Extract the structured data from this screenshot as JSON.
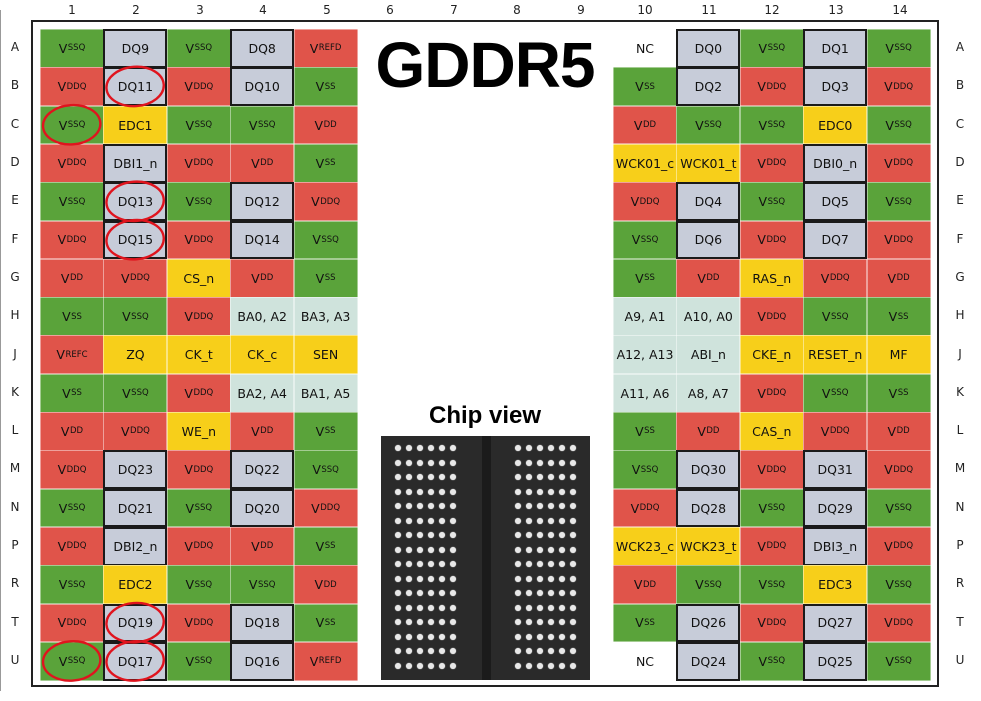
{
  "title": "GDDR5",
  "chip_view_label": "Chip view",
  "colors": {
    "vssq": "#5aa33a",
    "vss": "#5aa33a",
    "vddq": "#e0544a",
    "vdd": "#e0544a",
    "ref": "#e0544a",
    "dq": "#c7ccd9",
    "ctrl": "#f7cf1a",
    "addr": "#cfe3dc",
    "nc": "#ffffff",
    "circle": "#e0141e"
  },
  "columns": [
    "1",
    "2",
    "3",
    "4",
    "5",
    "6",
    "7",
    "8",
    "9",
    "10",
    "11",
    "12",
    "13",
    "14"
  ],
  "rows": [
    "A",
    "B",
    "C",
    "D",
    "E",
    "F",
    "G",
    "H",
    "J",
    "K",
    "L",
    "M",
    "N",
    "P",
    "R",
    "T",
    "U"
  ],
  "left_block": [
    [
      {
        "m": "V",
        "s": "SSQ",
        "t": "vssq"
      },
      {
        "m": "DQ9",
        "t": "dq",
        "b": 1
      },
      {
        "m": "V",
        "s": "SSQ",
        "t": "vssq"
      },
      {
        "m": "DQ8",
        "t": "dq",
        "b": 1
      },
      {
        "m": "V",
        "s": "REFD",
        "t": "ref"
      }
    ],
    [
      {
        "m": "V",
        "s": "DDQ",
        "t": "vddq"
      },
      {
        "m": "DQ11",
        "t": "dq",
        "b": 1
      },
      {
        "m": "V",
        "s": "DDQ",
        "t": "vddq"
      },
      {
        "m": "DQ10",
        "t": "dq",
        "b": 1
      },
      {
        "m": "V",
        "s": "SS",
        "t": "vss"
      }
    ],
    [
      {
        "m": "V",
        "s": "SSQ",
        "t": "vssq"
      },
      {
        "m": "EDC1",
        "t": "ctrl"
      },
      {
        "m": "V",
        "s": "SSQ",
        "t": "vssq"
      },
      {
        "m": "V",
        "s": "SSQ",
        "t": "vssq"
      },
      {
        "m": "V",
        "s": "DD",
        "t": "vdd"
      }
    ],
    [
      {
        "m": "V",
        "s": "DDQ",
        "t": "vddq"
      },
      {
        "m": "DBI1_n",
        "t": "dq",
        "b": 1
      },
      {
        "m": "V",
        "s": "DDQ",
        "t": "vddq"
      },
      {
        "m": "V",
        "s": "DD",
        "t": "vdd"
      },
      {
        "m": "V",
        "s": "SS",
        "t": "vss"
      }
    ],
    [
      {
        "m": "V",
        "s": "SSQ",
        "t": "vssq"
      },
      {
        "m": "DQ13",
        "t": "dq",
        "b": 1
      },
      {
        "m": "V",
        "s": "SSQ",
        "t": "vssq"
      },
      {
        "m": "DQ12",
        "t": "dq",
        "b": 1
      },
      {
        "m": "V",
        "s": "DDQ",
        "t": "vddq"
      }
    ],
    [
      {
        "m": "V",
        "s": "DDQ",
        "t": "vddq"
      },
      {
        "m": "DQ15",
        "t": "dq",
        "b": 1
      },
      {
        "m": "V",
        "s": "DDQ",
        "t": "vddq"
      },
      {
        "m": "DQ14",
        "t": "dq",
        "b": 1
      },
      {
        "m": "V",
        "s": "SSQ",
        "t": "vssq"
      }
    ],
    [
      {
        "m": "V",
        "s": "DD",
        "t": "vdd"
      },
      {
        "m": "V",
        "s": "DDQ",
        "t": "vddq"
      },
      {
        "m": "CS_n",
        "t": "ctrl"
      },
      {
        "m": "V",
        "s": "DD",
        "t": "vdd"
      },
      {
        "m": "V",
        "s": "SS",
        "t": "vss"
      }
    ],
    [
      {
        "m": "V",
        "s": "SS",
        "t": "vss"
      },
      {
        "m": "V",
        "s": "SSQ",
        "t": "vssq"
      },
      {
        "m": "V",
        "s": "DDQ",
        "t": "vddq"
      },
      {
        "m": "BA0, A2",
        "t": "addr"
      },
      {
        "m": "BA3, A3",
        "t": "addr"
      }
    ],
    [
      {
        "m": "V",
        "s": "REFC",
        "t": "ref"
      },
      {
        "m": "ZQ",
        "t": "ctrl"
      },
      {
        "m": "CK_t",
        "t": "ctrl"
      },
      {
        "m": "CK_c",
        "t": "ctrl"
      },
      {
        "m": "SEN",
        "t": "ctrl"
      }
    ],
    [
      {
        "m": "V",
        "s": "SS",
        "t": "vss"
      },
      {
        "m": "V",
        "s": "SSQ",
        "t": "vssq"
      },
      {
        "m": "V",
        "s": "DDQ",
        "t": "vddq"
      },
      {
        "m": "BA2, A4",
        "t": "addr"
      },
      {
        "m": "BA1, A5",
        "t": "addr"
      }
    ],
    [
      {
        "m": "V",
        "s": "DD",
        "t": "vdd"
      },
      {
        "m": "V",
        "s": "DDQ",
        "t": "vddq"
      },
      {
        "m": "WE_n",
        "t": "ctrl"
      },
      {
        "m": "V",
        "s": "DD",
        "t": "vdd"
      },
      {
        "m": "V",
        "s": "SS",
        "t": "vss"
      }
    ],
    [
      {
        "m": "V",
        "s": "DDQ",
        "t": "vddq"
      },
      {
        "m": "DQ23",
        "t": "dq",
        "b": 1
      },
      {
        "m": "V",
        "s": "DDQ",
        "t": "vddq"
      },
      {
        "m": "DQ22",
        "t": "dq",
        "b": 1
      },
      {
        "m": "V",
        "s": "SSQ",
        "t": "vssq"
      }
    ],
    [
      {
        "m": "V",
        "s": "SSQ",
        "t": "vssq"
      },
      {
        "m": "DQ21",
        "t": "dq",
        "b": 1
      },
      {
        "m": "V",
        "s": "SSQ",
        "t": "vssq"
      },
      {
        "m": "DQ20",
        "t": "dq",
        "b": 1
      },
      {
        "m": "V",
        "s": "DDQ",
        "t": "vddq"
      }
    ],
    [
      {
        "m": "V",
        "s": "DDQ",
        "t": "vddq"
      },
      {
        "m": "DBI2_n",
        "t": "dq",
        "b": 1
      },
      {
        "m": "V",
        "s": "DDQ",
        "t": "vddq"
      },
      {
        "m": "V",
        "s": "DD",
        "t": "vdd"
      },
      {
        "m": "V",
        "s": "SS",
        "t": "vss"
      }
    ],
    [
      {
        "m": "V",
        "s": "SSQ",
        "t": "vssq"
      },
      {
        "m": "EDC2",
        "t": "ctrl"
      },
      {
        "m": "V",
        "s": "SSQ",
        "t": "vssq"
      },
      {
        "m": "V",
        "s": "SSQ",
        "t": "vssq"
      },
      {
        "m": "V",
        "s": "DD",
        "t": "vdd"
      }
    ],
    [
      {
        "m": "V",
        "s": "DDQ",
        "t": "vddq"
      },
      {
        "m": "DQ19",
        "t": "dq",
        "b": 1
      },
      {
        "m": "V",
        "s": "DDQ",
        "t": "vddq"
      },
      {
        "m": "DQ18",
        "t": "dq",
        "b": 1
      },
      {
        "m": "V",
        "s": "SS",
        "t": "vss"
      }
    ],
    [
      {
        "m": "V",
        "s": "SSQ",
        "t": "vssq"
      },
      {
        "m": "DQ17",
        "t": "dq",
        "b": 1
      },
      {
        "m": "V",
        "s": "SSQ",
        "t": "vssq"
      },
      {
        "m": "DQ16",
        "t": "dq",
        "b": 1
      },
      {
        "m": "V",
        "s": "REFD",
        "t": "ref"
      }
    ]
  ],
  "right_block": [
    [
      {
        "m": "NC",
        "t": "nc"
      },
      {
        "m": "DQ0",
        "t": "dq",
        "b": 1
      },
      {
        "m": "V",
        "s": "SSQ",
        "t": "vssq"
      },
      {
        "m": "DQ1",
        "t": "dq",
        "b": 1
      },
      {
        "m": "V",
        "s": "SSQ",
        "t": "vssq"
      }
    ],
    [
      {
        "m": "V",
        "s": "SS",
        "t": "vss"
      },
      {
        "m": "DQ2",
        "t": "dq",
        "b": 1
      },
      {
        "m": "V",
        "s": "DDQ",
        "t": "vddq"
      },
      {
        "m": "DQ3",
        "t": "dq",
        "b": 1
      },
      {
        "m": "V",
        "s": "DDQ",
        "t": "vddq"
      }
    ],
    [
      {
        "m": "V",
        "s": "DD",
        "t": "vdd"
      },
      {
        "m": "V",
        "s": "SSQ",
        "t": "vssq"
      },
      {
        "m": "V",
        "s": "SSQ",
        "t": "vssq"
      },
      {
        "m": "EDC0",
        "t": "ctrl"
      },
      {
        "m": "V",
        "s": "SSQ",
        "t": "vssq"
      }
    ],
    [
      {
        "m": "WCK01_c",
        "t": "ctrl"
      },
      {
        "m": "WCK01_t",
        "t": "ctrl"
      },
      {
        "m": "V",
        "s": "DDQ",
        "t": "vddq"
      },
      {
        "m": "DBI0_n",
        "t": "dq",
        "b": 1
      },
      {
        "m": "V",
        "s": "DDQ",
        "t": "vddq"
      }
    ],
    [
      {
        "m": "V",
        "s": "DDQ",
        "t": "vddq"
      },
      {
        "m": "DQ4",
        "t": "dq",
        "b": 1
      },
      {
        "m": "V",
        "s": "SSQ",
        "t": "vssq"
      },
      {
        "m": "DQ5",
        "t": "dq",
        "b": 1
      },
      {
        "m": "V",
        "s": "SSQ",
        "t": "vssq"
      }
    ],
    [
      {
        "m": "V",
        "s": "SSQ",
        "t": "vssq"
      },
      {
        "m": "DQ6",
        "t": "dq",
        "b": 1
      },
      {
        "m": "V",
        "s": "DDQ",
        "t": "vddq"
      },
      {
        "m": "DQ7",
        "t": "dq",
        "b": 1
      },
      {
        "m": "V",
        "s": "DDQ",
        "t": "vddq"
      }
    ],
    [
      {
        "m": "V",
        "s": "SS",
        "t": "vss"
      },
      {
        "m": "V",
        "s": "DD",
        "t": "vdd"
      },
      {
        "m": "RAS_n",
        "t": "ctrl"
      },
      {
        "m": "V",
        "s": "DDQ",
        "t": "vddq"
      },
      {
        "m": "V",
        "s": "DD",
        "t": "vdd"
      }
    ],
    [
      {
        "m": "A9, A1",
        "t": "addr"
      },
      {
        "m": "A10, A0",
        "t": "addr"
      },
      {
        "m": "V",
        "s": "DDQ",
        "t": "vddq"
      },
      {
        "m": "V",
        "s": "SSQ",
        "t": "vssq"
      },
      {
        "m": "V",
        "s": "SS",
        "t": "vss"
      }
    ],
    [
      {
        "m": "A12, A13",
        "t": "addr"
      },
      {
        "m": "ABI_n",
        "t": "addr"
      },
      {
        "m": "CKE_n",
        "t": "ctrl"
      },
      {
        "m": "RESET_n",
        "t": "ctrl"
      },
      {
        "m": "MF",
        "t": "ctrl"
      }
    ],
    [
      {
        "m": "A11, A6",
        "t": "addr"
      },
      {
        "m": "A8, A7",
        "t": "addr"
      },
      {
        "m": "V",
        "s": "DDQ",
        "t": "vddq"
      },
      {
        "m": "V",
        "s": "SSQ",
        "t": "vssq"
      },
      {
        "m": "V",
        "s": "SS",
        "t": "vss"
      }
    ],
    [
      {
        "m": "V",
        "s": "SS",
        "t": "vss"
      },
      {
        "m": "V",
        "s": "DD",
        "t": "vdd"
      },
      {
        "m": "CAS_n",
        "t": "ctrl"
      },
      {
        "m": "V",
        "s": "DDQ",
        "t": "vddq"
      },
      {
        "m": "V",
        "s": "DD",
        "t": "vdd"
      }
    ],
    [
      {
        "m": "V",
        "s": "SSQ",
        "t": "vssq"
      },
      {
        "m": "DQ30",
        "t": "dq",
        "b": 1
      },
      {
        "m": "V",
        "s": "DDQ",
        "t": "vddq"
      },
      {
        "m": "DQ31",
        "t": "dq",
        "b": 1
      },
      {
        "m": "V",
        "s": "DDQ",
        "t": "vddq"
      }
    ],
    [
      {
        "m": "V",
        "s": "DDQ",
        "t": "vddq"
      },
      {
        "m": "DQ28",
        "t": "dq",
        "b": 1
      },
      {
        "m": "V",
        "s": "SSQ",
        "t": "vssq"
      },
      {
        "m": "DQ29",
        "t": "dq",
        "b": 1
      },
      {
        "m": "V",
        "s": "SSQ",
        "t": "vssq"
      }
    ],
    [
      {
        "m": "WCK23_c",
        "t": "ctrl"
      },
      {
        "m": "WCK23_t",
        "t": "ctrl"
      },
      {
        "m": "V",
        "s": "DDQ",
        "t": "vddq"
      },
      {
        "m": "DBI3_n",
        "t": "dq",
        "b": 1
      },
      {
        "m": "V",
        "s": "DDQ",
        "t": "vddq"
      }
    ],
    [
      {
        "m": "V",
        "s": "DD",
        "t": "vdd"
      },
      {
        "m": "V",
        "s": "SSQ",
        "t": "vssq"
      },
      {
        "m": "V",
        "s": "SSQ",
        "t": "vssq"
      },
      {
        "m": "EDC3",
        "t": "ctrl"
      },
      {
        "m": "V",
        "s": "SSQ",
        "t": "vssq"
      }
    ],
    [
      {
        "m": "V",
        "s": "SS",
        "t": "vss"
      },
      {
        "m": "DQ26",
        "t": "dq",
        "b": 1
      },
      {
        "m": "V",
        "s": "DDQ",
        "t": "vddq"
      },
      {
        "m": "DQ27",
        "t": "dq",
        "b": 1
      },
      {
        "m": "V",
        "s": "DDQ",
        "t": "vddq"
      }
    ],
    [
      {
        "m": "NC",
        "t": "nc"
      },
      {
        "m": "DQ24",
        "t": "dq",
        "b": 1
      },
      {
        "m": "V",
        "s": "SSQ",
        "t": "vssq"
      },
      {
        "m": "DQ25",
        "t": "dq",
        "b": 1
      },
      {
        "m": "V",
        "s": "SSQ",
        "t": "vssq"
      }
    ]
  ],
  "annotations": [
    {
      "block": "left",
      "row": "B",
      "col": "2"
    },
    {
      "block": "left",
      "row": "C",
      "col": "1"
    },
    {
      "block": "left",
      "row": "E",
      "col": "2"
    },
    {
      "block": "left",
      "row": "F",
      "col": "2"
    },
    {
      "block": "left",
      "row": "T",
      "col": "2"
    },
    {
      "block": "left",
      "row": "U",
      "col": "1"
    },
    {
      "block": "left",
      "row": "U",
      "col": "2"
    }
  ]
}
